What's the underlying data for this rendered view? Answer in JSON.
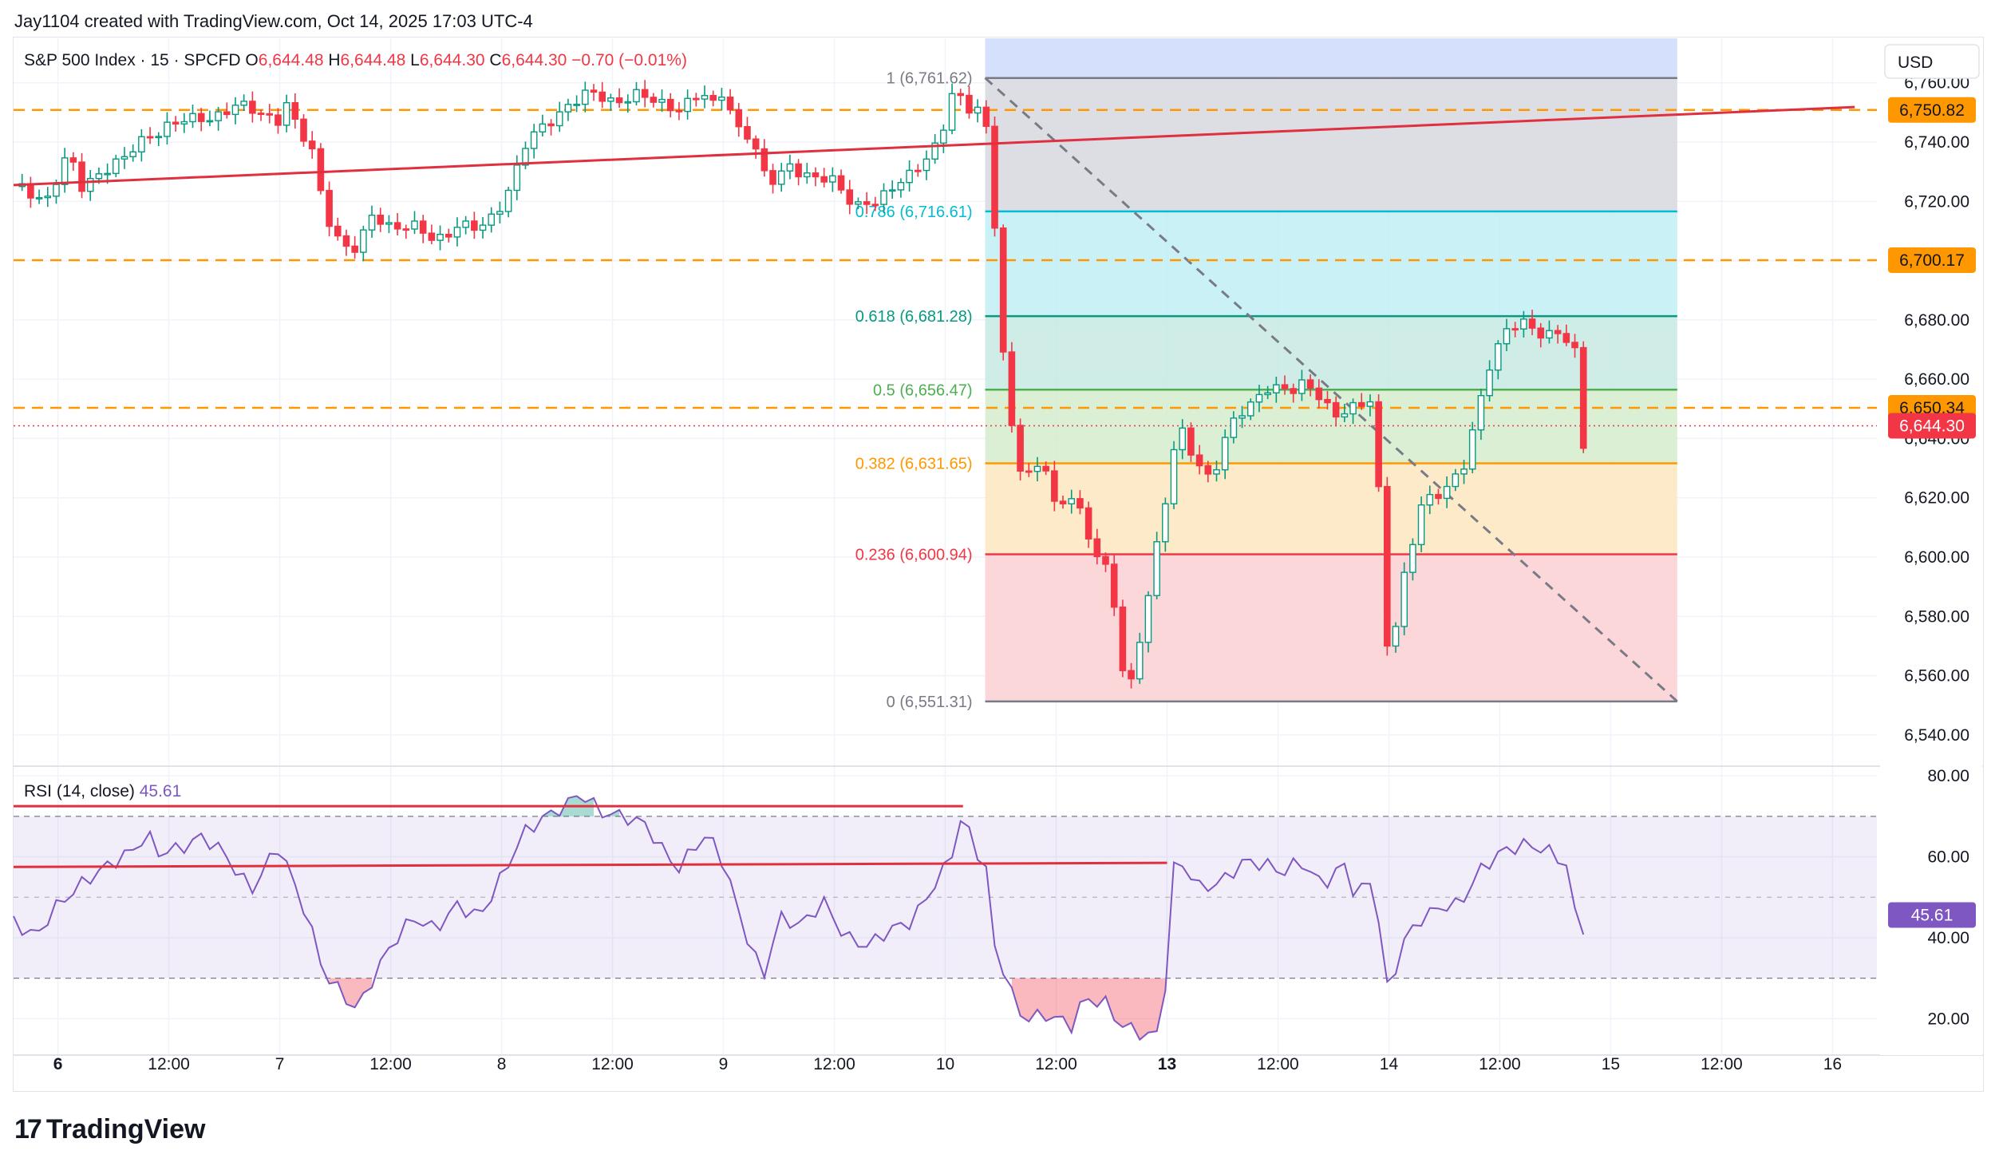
{
  "header": {
    "credit": "Jay1104 created with TradingView.com, Oct 14, 2025 17:03 UTC-4"
  },
  "footer": {
    "brand": "TradingView",
    "logo_glyph": "17"
  },
  "colors": {
    "up": "#089981",
    "down": "#f23645",
    "orange": "#ff9800",
    "rsi": "#7e57c2",
    "trend": "#e0303f",
    "grid": "#f0f3fa",
    "axis_text": "#131722"
  },
  "chart_data": [
    {
      "type": "candlestick",
      "title": "S&P 500 Index · 15 · SPCFD",
      "ohlc": {
        "O_label": "O",
        "O": "6,644.48",
        "H_label": "H",
        "H": "6,644.48",
        "L_label": "L",
        "L": "6,644.30",
        "C_label": "C",
        "C": "6,644.30",
        "change": "−0.70 (−0.01%)"
      },
      "currency": "USD",
      "ylim": [
        6530,
        6775
      ],
      "yticks": [
        6540,
        6560,
        6580,
        6600,
        6620,
        6640,
        6660,
        6680,
        6700,
        6720,
        6740,
        6760
      ],
      "ytick_labels": [
        "6,540.00",
        "6,560.00",
        "6,580.00",
        "6,600.00",
        "6,620.00",
        "6,640.00",
        "6,660.00",
        "6,680.00",
        "6,700.00",
        "6,720.00",
        "6,740.00",
        "6,760.00"
      ],
      "xlim": [
        0,
        14
      ],
      "xticks": [
        {
          "t": 0.0,
          "label": "6",
          "bold": true
        },
        {
          "t": 0.5,
          "label": "12:00"
        },
        {
          "t": 1.0,
          "label": "7",
          "bold": false
        },
        {
          "t": 1.5,
          "label": "12:00"
        },
        {
          "t": 2.0,
          "label": "8"
        },
        {
          "t": 2.5,
          "label": "12:00"
        },
        {
          "t": 3.0,
          "label": "9"
        },
        {
          "t": 3.5,
          "label": "12:00"
        },
        {
          "t": 4.0,
          "label": "10"
        },
        {
          "t": 4.5,
          "label": "12:00"
        },
        {
          "t": 5.0,
          "label": "13",
          "bold": true
        },
        {
          "t": 5.5,
          "label": "12:00"
        },
        {
          "t": 6.0,
          "label": "14"
        },
        {
          "t": 6.5,
          "label": "12:00"
        },
        {
          "t": 7.0,
          "label": "15"
        },
        {
          "t": 7.5,
          "label": "12:00"
        },
        {
          "t": 8.0,
          "label": "16"
        }
      ],
      "price_path": [
        [
          -0.2,
          6725
        ],
        [
          -0.05,
          6721
        ],
        [
          0.05,
          6736
        ],
        [
          0.1,
          6724
        ],
        [
          0.2,
          6731
        ],
        [
          0.3,
          6734
        ],
        [
          0.4,
          6742
        ],
        [
          0.5,
          6746
        ],
        [
          0.6,
          6747
        ],
        [
          0.7,
          6749
        ],
        [
          0.8,
          6752
        ],
        [
          0.9,
          6750
        ],
        [
          1.0,
          6748
        ],
        [
          1.03,
          6753
        ],
        [
          1.08,
          6744
        ],
        [
          1.15,
          6736
        ],
        [
          1.2,
          6718
        ],
        [
          1.28,
          6705
        ],
        [
          1.35,
          6703
        ],
        [
          1.42,
          6716
        ],
        [
          1.5,
          6712
        ],
        [
          1.6,
          6711
        ],
        [
          1.7,
          6707
        ],
        [
          1.8,
          6712
        ],
        [
          1.9,
          6710
        ],
        [
          1.97,
          6716
        ],
        [
          2.05,
          6727
        ],
        [
          2.1,
          6738
        ],
        [
          2.2,
          6746
        ],
        [
          2.3,
          6753
        ],
        [
          2.4,
          6756
        ],
        [
          2.5,
          6754
        ],
        [
          2.6,
          6756
        ],
        [
          2.7,
          6753
        ],
        [
          2.8,
          6752
        ],
        [
          2.9,
          6756
        ],
        [
          2.98,
          6750
        ],
        [
          3.0,
          6761
        ],
        [
          3.05,
          6746
        ],
        [
          3.12,
          6742
        ],
        [
          3.2,
          6725
        ],
        [
          3.3,
          6733
        ],
        [
          3.4,
          6727
        ],
        [
          3.5,
          6727
        ],
        [
          3.6,
          6719
        ],
        [
          3.7,
          6719
        ],
        [
          3.8,
          6728
        ],
        [
          3.9,
          6733
        ],
        [
          3.98,
          6739
        ],
        [
          4.02,
          6757
        ],
        [
          4.08,
          6755
        ],
        [
          4.12,
          6751
        ],
        [
          4.16,
          6752
        ],
        [
          4.2,
          6738
        ],
        [
          4.26,
          6669
        ],
        [
          4.3,
          6644
        ],
        [
          4.35,
          6628
        ],
        [
          4.45,
          6631
        ],
        [
          4.5,
          6614
        ],
        [
          4.58,
          6623
        ],
        [
          4.65,
          6606
        ],
        [
          4.72,
          6596
        ],
        [
          4.77,
          6580
        ],
        [
          4.82,
          6551
        ],
        [
          5.0,
          6621
        ],
        [
          5.05,
          6645
        ],
        [
          5.12,
          6635
        ],
        [
          5.2,
          6625
        ],
        [
          5.28,
          6643
        ],
        [
          5.35,
          6651
        ],
        [
          5.45,
          6657
        ],
        [
          5.55,
          6655
        ],
        [
          5.62,
          6660
        ],
        [
          5.7,
          6654
        ],
        [
          5.75,
          6646
        ],
        [
          5.85,
          6651
        ],
        [
          5.93,
          6655
        ],
        [
          6.0,
          6560
        ],
        [
          6.05,
          6586
        ],
        [
          6.1,
          6603
        ],
        [
          6.15,
          6620
        ],
        [
          6.25,
          6622
        ],
        [
          6.33,
          6628
        ],
        [
          6.4,
          6650
        ],
        [
          6.45,
          6665
        ],
        [
          6.52,
          6675
        ],
        [
          6.6,
          6679
        ],
        [
          6.7,
          6676
        ],
        [
          6.78,
          6675
        ],
        [
          6.84,
          6668
        ],
        [
          6.86,
          6632
        ],
        [
          6.9,
          6644
        ]
      ],
      "fib_retracement": [
        {
          "level": "1",
          "price": 6761.62,
          "label": "1 (6,761.62)",
          "color": "#787b86"
        },
        {
          "level": "0.786",
          "price": 6716.61,
          "label": "0.786 (6,716.61)",
          "color": "#00bcd4"
        },
        {
          "level": "0.618",
          "price": 6681.28,
          "label": "0.618 (6,681.28)",
          "color": "#089981"
        },
        {
          "level": "0.5",
          "price": 6656.47,
          "label": "0.5 (6,656.47)",
          "color": "#4caf50"
        },
        {
          "level": "0.382",
          "price": 6631.65,
          "label": "0.382 (6,631.65)",
          "color": "#ff9800"
        },
        {
          "level": "0.236",
          "price": 6600.94,
          "label": "0.236 (6,600.94)",
          "color": "#f23645"
        },
        {
          "level": "0",
          "price": 6551.31,
          "label": "0 (6,551.31)",
          "color": "#787b86"
        }
      ],
      "fib_t_range": [
        4.18,
        7.3
      ],
      "horizontal_levels": [
        {
          "price": 6750.82,
          "label": "6,750.82",
          "color": "#ff9800"
        },
        {
          "price": 6700.17,
          "label": "6,700.17",
          "color": "#ff9800"
        },
        {
          "price": 6650.34,
          "label": "6,650.34",
          "color": "#ff9800"
        }
      ],
      "last_price": {
        "price": 6644.3,
        "label": "6,644.30",
        "color": "#f23645"
      },
      "trend_line": {
        "from": [
          -0.2,
          6725.5
        ],
        "to": [
          8.1,
          6751.8
        ]
      },
      "diagonal": {
        "from": [
          4.18,
          6761.62
        ],
        "to": [
          7.3,
          6551.31
        ]
      }
    },
    {
      "type": "line",
      "title": "RSI (14, close)",
      "value_label": "45.61",
      "last_value": 45.61,
      "ylim": [
        11,
        82
      ],
      "yticks": [
        20,
        40,
        60,
        80
      ],
      "ytick_labels": [
        "20.00",
        "40.00",
        "60.00",
        "80.00"
      ],
      "band": [
        30,
        70
      ],
      "midline": 50,
      "values": [
        [
          -0.2,
          44
        ],
        [
          -0.1,
          40
        ],
        [
          -0.02,
          47
        ],
        [
          0.1,
          53
        ],
        [
          0.2,
          57
        ],
        [
          0.35,
          62
        ],
        [
          0.4,
          66
        ],
        [
          0.45,
          61
        ],
        [
          0.55,
          62
        ],
        [
          0.65,
          65
        ],
        [
          0.75,
          61
        ],
        [
          0.82,
          55
        ],
        [
          0.88,
          52
        ],
        [
          0.95,
          59
        ],
        [
          1.0,
          63
        ],
        [
          1.05,
          55
        ],
        [
          1.12,
          46
        ],
        [
          1.2,
          31
        ],
        [
          1.3,
          25
        ],
        [
          1.35,
          22
        ],
        [
          1.42,
          30
        ],
        [
          1.5,
          38
        ],
        [
          1.6,
          45
        ],
        [
          1.7,
          42
        ],
        [
          1.8,
          48
        ],
        [
          1.9,
          45
        ],
        [
          2.0,
          55
        ],
        [
          2.1,
          66
        ],
        [
          2.2,
          70
        ],
        [
          2.3,
          73
        ],
        [
          2.35,
          76
        ],
        [
          2.45,
          71
        ],
        [
          2.55,
          70
        ],
        [
          2.65,
          68
        ],
        [
          2.72,
          62
        ],
        [
          2.8,
          57
        ],
        [
          2.9,
          65
        ],
        [
          2.97,
          63
        ],
        [
          3.02,
          55
        ],
        [
          3.1,
          41
        ],
        [
          3.18,
          30
        ],
        [
          3.25,
          45
        ],
        [
          3.35,
          43
        ],
        [
          3.45,
          49
        ],
        [
          3.55,
          40
        ],
        [
          3.65,
          38
        ],
        [
          3.75,
          42
        ],
        [
          3.85,
          44
        ],
        [
          3.95,
          53
        ],
        [
          4.02,
          59
        ],
        [
          4.08,
          71
        ],
        [
          4.13,
          62
        ],
        [
          4.18,
          59
        ],
        [
          4.22,
          38
        ],
        [
          4.28,
          30
        ],
        [
          4.32,
          22
        ],
        [
          4.38,
          20
        ],
        [
          4.45,
          21
        ],
        [
          4.55,
          19
        ],
        [
          4.58,
          18
        ],
        [
          4.62,
          25
        ],
        [
          4.72,
          24
        ],
        [
          4.78,
          19
        ],
        [
          4.85,
          17
        ],
        [
          4.9,
          16
        ],
        [
          4.98,
          16
        ],
        [
          5.02,
          57
        ],
        [
          5.08,
          58
        ],
        [
          5.15,
          52
        ],
        [
          5.25,
          54
        ],
        [
          5.35,
          59
        ],
        [
          5.45,
          58
        ],
        [
          5.52,
          56
        ],
        [
          5.6,
          59
        ],
        [
          5.7,
          53
        ],
        [
          5.8,
          58
        ],
        [
          5.85,
          50
        ],
        [
          5.93,
          55
        ],
        [
          6.0,
          24
        ],
        [
          6.05,
          38
        ],
        [
          6.15,
          45
        ],
        [
          6.25,
          48
        ],
        [
          6.32,
          48
        ],
        [
          6.4,
          56
        ],
        [
          6.5,
          61
        ],
        [
          6.6,
          63
        ],
        [
          6.7,
          62
        ],
        [
          6.78,
          59
        ],
        [
          6.82,
          57
        ],
        [
          6.85,
          39
        ],
        [
          6.9,
          45.61
        ]
      ],
      "trend_line_top": {
        "from": [
          -0.2,
          72.5
        ],
        "to": [
          4.08,
          72.5
        ]
      },
      "trend_line_mid": {
        "from": [
          -0.2,
          57.5
        ],
        "to": [
          5.0,
          58.5
        ]
      }
    }
  ]
}
